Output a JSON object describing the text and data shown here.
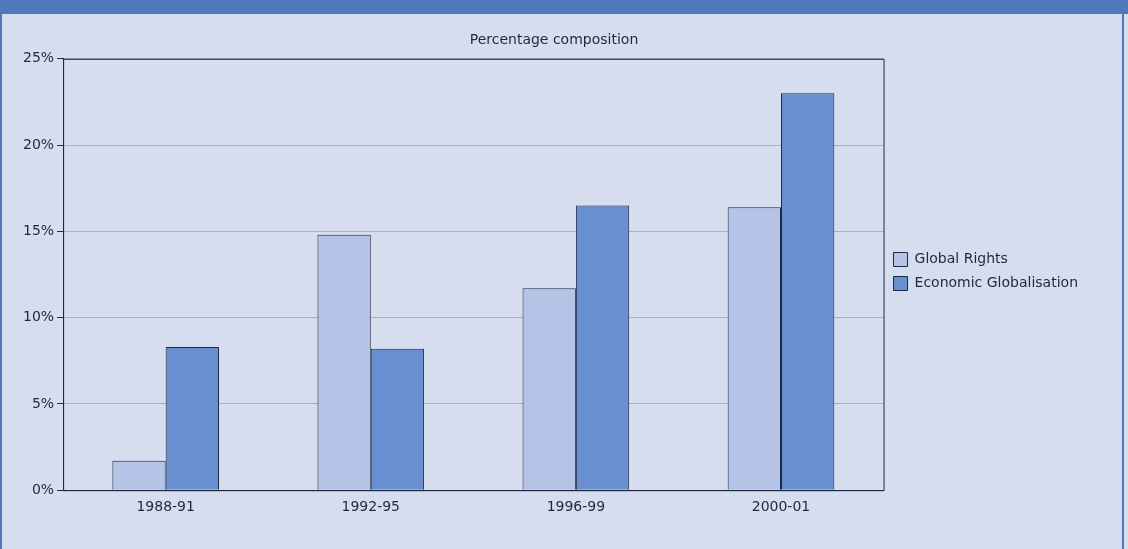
{
  "chart_data": {
    "type": "bar",
    "title": "Percentage composition",
    "categories": [
      "1988-91",
      "1992-95",
      "1996-99",
      "2000-01"
    ],
    "series": [
      {
        "name": "Global Rights",
        "color": "#b4c3e6",
        "values": [
          1.7,
          14.8,
          11.7,
          16.4
        ]
      },
      {
        "name": "Economic Globalisation",
        "color": "#6a8fd0",
        "values": [
          8.3,
          8.2,
          16.5,
          23.0
        ]
      }
    ],
    "ylim": [
      0,
      25
    ],
    "yticks": [
      {
        "value": 0,
        "label": "0%"
      },
      {
        "value": 5,
        "label": "5%"
      },
      {
        "value": 10,
        "label": "10%"
      },
      {
        "value": 15,
        "label": "15%"
      },
      {
        "value": 20,
        "label": "20%"
      },
      {
        "value": 25,
        "label": "25%"
      }
    ],
    "grid": "y",
    "legend": "right"
  }
}
